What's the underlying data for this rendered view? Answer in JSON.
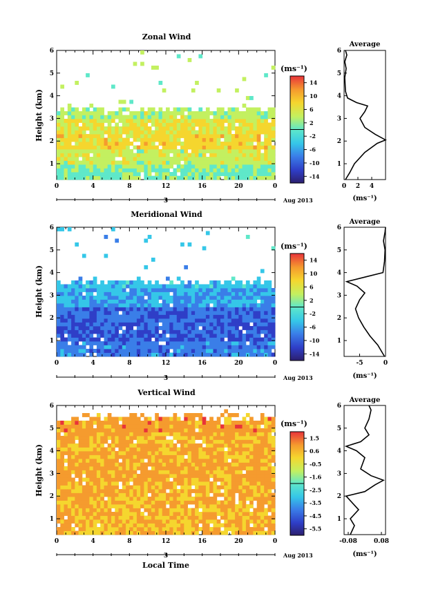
{
  "chart_data": [
    {
      "type": "heatmap",
      "title": "Zonal Wind",
      "ylabel": "Height (km)",
      "xticks": [
        "0",
        "4",
        "8",
        "12",
        "16",
        "20",
        "0"
      ],
      "yticks": [
        "1",
        "2",
        "3",
        "4",
        "5",
        "6"
      ],
      "day_label": "3",
      "date_label": "Aug 2013",
      "xlim": [
        0,
        24
      ],
      "ylim": [
        0.3,
        6
      ],
      "colorbar": {
        "unit": "(ms⁻¹)",
        "ticks": [
          "14",
          "10",
          "6",
          "2",
          "-2",
          "-6",
          "-10",
          "-14"
        ],
        "range": [
          -16,
          16
        ]
      },
      "bands": [
        {
          "h": 0.6,
          "v": 1
        },
        {
          "h": 1.2,
          "v": 4
        },
        {
          "h": 2.0,
          "v": 7
        },
        {
          "h": 2.7,
          "v": 6
        },
        {
          "h": 3.4,
          "v": 3
        }
      ],
      "average": {
        "title": "Average",
        "xlabel": "(ms⁻¹)",
        "xticks": [
          "0",
          "2",
          "4"
        ],
        "xlim": [
          0,
          6
        ],
        "profile": [
          [
            0.2,
            0.3
          ],
          [
            0.8,
            0.6
          ],
          [
            1.5,
            1.0
          ],
          [
            3.0,
            1.5
          ],
          [
            4.8,
            1.9
          ],
          [
            6.0,
            2.05
          ],
          [
            4.5,
            2.3
          ],
          [
            3.0,
            2.6
          ],
          [
            2.3,
            3.0
          ],
          [
            3.0,
            3.3
          ],
          [
            3.4,
            3.55
          ],
          [
            1.8,
            3.7
          ],
          [
            0.5,
            3.9
          ],
          [
            0.2,
            4.2
          ],
          [
            0.1,
            4.8
          ],
          [
            0.3,
            5.2
          ],
          [
            0.1,
            5.5
          ],
          [
            0.4,
            5.8
          ],
          [
            0.2,
            6.0
          ]
        ]
      }
    },
    {
      "type": "heatmap",
      "title": "Meridional Wind",
      "ylabel": "Height (km)",
      "xticks": [
        "0",
        "4",
        "8",
        "12",
        "16",
        "20",
        "0"
      ],
      "yticks": [
        "1",
        "2",
        "3",
        "4",
        "5",
        "6"
      ],
      "day_label": "3",
      "date_label": "Aug 2013",
      "xlim": [
        0,
        24
      ],
      "ylim": [
        0.3,
        6
      ],
      "colorbar": {
        "unit": "(ms⁻¹)",
        "ticks": [
          "14",
          "10",
          "6",
          "2",
          "-2",
          "-6",
          "-10",
          "-14"
        ],
        "range": [
          -16,
          16
        ]
      },
      "bands": [
        {
          "h": 0.7,
          "v": -7
        },
        {
          "h": 1.4,
          "v": -9
        },
        {
          "h": 2.2,
          "v": -8
        },
        {
          "h": 2.9,
          "v": -5
        },
        {
          "h": 3.6,
          "v": -4
        }
      ],
      "average": {
        "title": "Average",
        "xlabel": "(ms⁻¹)",
        "xticks": [
          "-5",
          "0"
        ],
        "xlim": [
          -8,
          0
        ],
        "profile": [
          [
            -0.2,
            0.3
          ],
          [
            -1.5,
            0.8
          ],
          [
            -3.0,
            1.2
          ],
          [
            -4.2,
            1.6
          ],
          [
            -5.2,
            2.0
          ],
          [
            -5.8,
            2.4
          ],
          [
            -5.0,
            2.8
          ],
          [
            -4.0,
            3.1
          ],
          [
            -5.5,
            3.4
          ],
          [
            -7.5,
            3.6
          ],
          [
            -4.0,
            3.8
          ],
          [
            -0.5,
            4.0
          ],
          [
            -0.2,
            4.5
          ],
          [
            -0.1,
            5.0
          ],
          [
            -0.4,
            5.4
          ],
          [
            -0.1,
            5.8
          ],
          [
            0,
            6.0
          ]
        ]
      }
    },
    {
      "type": "heatmap",
      "title": "Vertical Wind",
      "ylabel": "Height (km)",
      "xlabel": "Local Time",
      "xticks": [
        "0",
        "4",
        "8",
        "12",
        "16",
        "20",
        "0"
      ],
      "yticks": [
        "1",
        "2",
        "3",
        "4",
        "5",
        "6"
      ],
      "day_label": "3",
      "date_label": "Aug 2013",
      "xlim": [
        0,
        24
      ],
      "ylim": [
        0.3,
        6
      ],
      "colorbar": {
        "unit": "(ms⁻¹)",
        "ticks": [
          "1.5",
          "0.6",
          "-0.5",
          "-1.6",
          "-2.5",
          "-3.5",
          "-4.5",
          "-5.5"
        ],
        "range": [
          -6,
          2
        ]
      },
      "bands": [
        {
          "h": 1.0,
          "v": 0.3
        },
        {
          "h": 2.2,
          "v": 0.4
        },
        {
          "h": 3.0,
          "v": 0.5
        },
        {
          "h": 4.3,
          "v": 0.4
        },
        {
          "h": 5.5,
          "v": 0.6
        }
      ],
      "average": {
        "title": "Average",
        "xlabel": "(ms⁻¹)",
        "xticks": [
          "-0.08",
          "0.08"
        ],
        "xlim": [
          -0.1,
          0.1
        ],
        "profile": [
          [
            -0.07,
            0.3
          ],
          [
            -0.05,
            0.7
          ],
          [
            -0.07,
            1.0
          ],
          [
            -0.03,
            1.4
          ],
          [
            -0.07,
            1.8
          ],
          [
            -0.09,
            2.0
          ],
          [
            0.0,
            2.2
          ],
          [
            0.05,
            2.5
          ],
          [
            0.09,
            2.7
          ],
          [
            0.03,
            2.9
          ],
          [
            -0.02,
            3.2
          ],
          [
            0.0,
            3.7
          ],
          [
            -0.04,
            4.0
          ],
          [
            -0.09,
            4.2
          ],
          [
            -0.02,
            4.4
          ],
          [
            0.02,
            4.7
          ],
          [
            0.0,
            5.0
          ],
          [
            0.02,
            5.4
          ],
          [
            0.03,
            5.8
          ],
          [
            0.02,
            6.0
          ]
        ]
      }
    }
  ]
}
